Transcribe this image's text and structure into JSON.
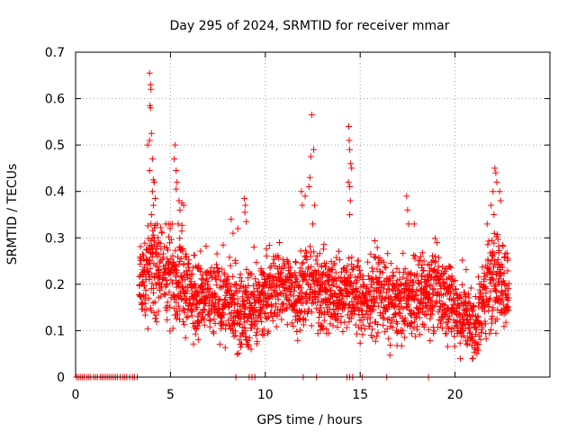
{
  "colors": {
    "series": "#ff0000",
    "grid": "#a0a0a0",
    "frame": "#000000"
  },
  "chart_data": {
    "type": "scatter",
    "title": "Day 295 of 2024, SRMTID for receiver mmar",
    "xlabel": "GPS time / hours",
    "ylabel": "SRMTID / TECUs",
    "xlim": [
      0,
      25
    ],
    "ylim": [
      0,
      0.7
    ],
    "xticks": [
      0,
      5,
      10,
      15,
      20
    ],
    "yticks": [
      0,
      0.1,
      0.2,
      0.3,
      0.4,
      0.5,
      0.6,
      0.7
    ],
    "xtick_labels": [
      "0",
      "5",
      "10",
      "15",
      "20"
    ],
    "ytick_labels": [
      "0",
      "0.1",
      "0.2",
      "0.3",
      "0.4",
      "0.5",
      "0.6",
      "0.7"
    ],
    "grid": true,
    "marker": "+",
    "series": [
      {
        "name": "SRMTID",
        "points": [
          [
            0.05,
            0
          ],
          [
            0.15,
            0
          ],
          [
            0.25,
            0
          ],
          [
            0.35,
            0
          ],
          [
            0.45,
            0
          ],
          [
            0.6,
            0
          ],
          [
            0.7,
            0
          ],
          [
            0.8,
            0
          ],
          [
            0.95,
            0
          ],
          [
            1.05,
            0
          ],
          [
            1.15,
            0
          ],
          [
            1.3,
            0
          ],
          [
            1.4,
            0
          ],
          [
            1.5,
            0
          ],
          [
            1.6,
            0
          ],
          [
            1.7,
            0
          ],
          [
            1.8,
            0
          ],
          [
            1.9,
            0
          ],
          [
            2.0,
            0
          ],
          [
            2.1,
            0
          ],
          [
            2.2,
            0
          ],
          [
            2.35,
            0
          ],
          [
            2.5,
            0
          ],
          [
            2.6,
            0
          ],
          [
            2.7,
            0
          ],
          [
            2.85,
            0
          ],
          [
            3.0,
            0
          ],
          [
            3.1,
            0
          ],
          [
            3.25,
            0
          ],
          [
            8.45,
            0
          ],
          [
            9.15,
            0
          ],
          [
            9.3,
            0
          ],
          [
            9.45,
            0
          ],
          [
            12.0,
            0
          ],
          [
            12.7,
            0
          ],
          [
            14.3,
            0
          ],
          [
            14.45,
            0
          ],
          [
            14.6,
            0
          ],
          [
            15.1,
            0
          ],
          [
            16.4,
            0
          ],
          [
            18.6,
            0
          ],
          [
            3.9,
            0.655
          ],
          [
            3.95,
            0.63
          ],
          [
            3.97,
            0.62
          ],
          [
            3.92,
            0.585
          ],
          [
            3.95,
            0.58
          ],
          [
            4.0,
            0.525
          ],
          [
            3.9,
            0.51
          ],
          [
            3.8,
            0.5
          ],
          [
            4.05,
            0.47
          ],
          [
            3.9,
            0.445
          ],
          [
            4.1,
            0.425
          ],
          [
            4.15,
            0.42
          ],
          [
            4.05,
            0.4
          ],
          [
            4.2,
            0.385
          ],
          [
            4.1,
            0.37
          ],
          [
            4.0,
            0.35
          ],
          [
            4.3,
            0.33
          ],
          [
            5.25,
            0.5
          ],
          [
            5.2,
            0.47
          ],
          [
            5.3,
            0.445
          ],
          [
            5.35,
            0.42
          ],
          [
            5.3,
            0.405
          ],
          [
            5.45,
            0.38
          ],
          [
            5.5,
            0.36
          ],
          [
            5.6,
            0.375
          ],
          [
            5.7,
            0.37
          ],
          [
            8.2,
            0.34
          ],
          [
            8.3,
            0.31
          ],
          [
            8.55,
            0.32
          ],
          [
            8.9,
            0.385
          ],
          [
            8.95,
            0.37
          ],
          [
            8.92,
            0.355
          ],
          [
            9.0,
            0.335
          ],
          [
            9.4,
            0.28
          ],
          [
            11.9,
            0.4
          ],
          [
            11.95,
            0.37
          ],
          [
            12.1,
            0.39
          ],
          [
            12.3,
            0.41
          ],
          [
            12.35,
            0.43
          ],
          [
            12.4,
            0.475
          ],
          [
            12.45,
            0.565
          ],
          [
            12.55,
            0.49
          ],
          [
            12.6,
            0.37
          ],
          [
            12.5,
            0.33
          ],
          [
            14.4,
            0.54
          ],
          [
            14.42,
            0.51
          ],
          [
            14.45,
            0.49
          ],
          [
            14.38,
            0.42
          ],
          [
            14.45,
            0.41
          ],
          [
            14.5,
            0.46
          ],
          [
            14.55,
            0.45
          ],
          [
            14.48,
            0.38
          ],
          [
            14.45,
            0.35
          ],
          [
            17.45,
            0.39
          ],
          [
            17.5,
            0.36
          ],
          [
            17.55,
            0.33
          ],
          [
            17.85,
            0.33
          ],
          [
            21.9,
            0.37
          ],
          [
            22.0,
            0.4
          ],
          [
            22.1,
            0.45
          ],
          [
            22.15,
            0.44
          ],
          [
            22.2,
            0.42
          ],
          [
            22.35,
            0.4
          ],
          [
            22.4,
            0.38
          ],
          [
            22.05,
            0.35
          ]
        ]
      }
    ]
  }
}
